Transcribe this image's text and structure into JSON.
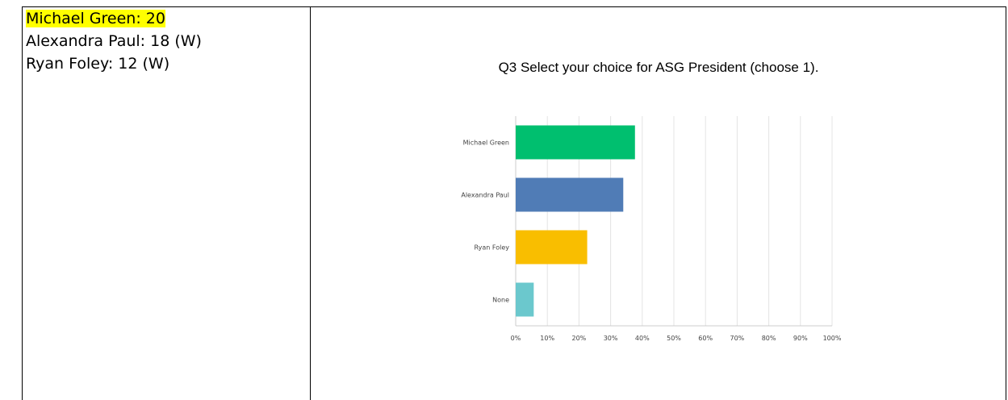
{
  "left_panel": {
    "lines": [
      {
        "text": "Michael Green: 20",
        "highlight": true
      },
      {
        "text": "Alexandra Paul: 18 (W)",
        "highlight": false
      },
      {
        "text": "Ryan Foley: 12 (W)",
        "highlight": false
      }
    ]
  },
  "chart_data": {
    "type": "bar",
    "orientation": "horizontal",
    "title": "Q3 Select your choice for ASG President (choose 1).",
    "categories": [
      "Michael Green",
      "Alexandra Paul",
      "Ryan Foley",
      "None"
    ],
    "values": [
      37.7,
      34.0,
      22.6,
      5.7
    ],
    "colors": [
      "#00bf6f",
      "#507cb6",
      "#f9be00",
      "#6bc8cd"
    ],
    "xlim": [
      0,
      100
    ],
    "xticks": [
      "0%",
      "10%",
      "20%",
      "30%",
      "40%",
      "50%",
      "60%",
      "70%",
      "80%",
      "90%",
      "100%"
    ],
    "grid": true,
    "legend": "none"
  }
}
